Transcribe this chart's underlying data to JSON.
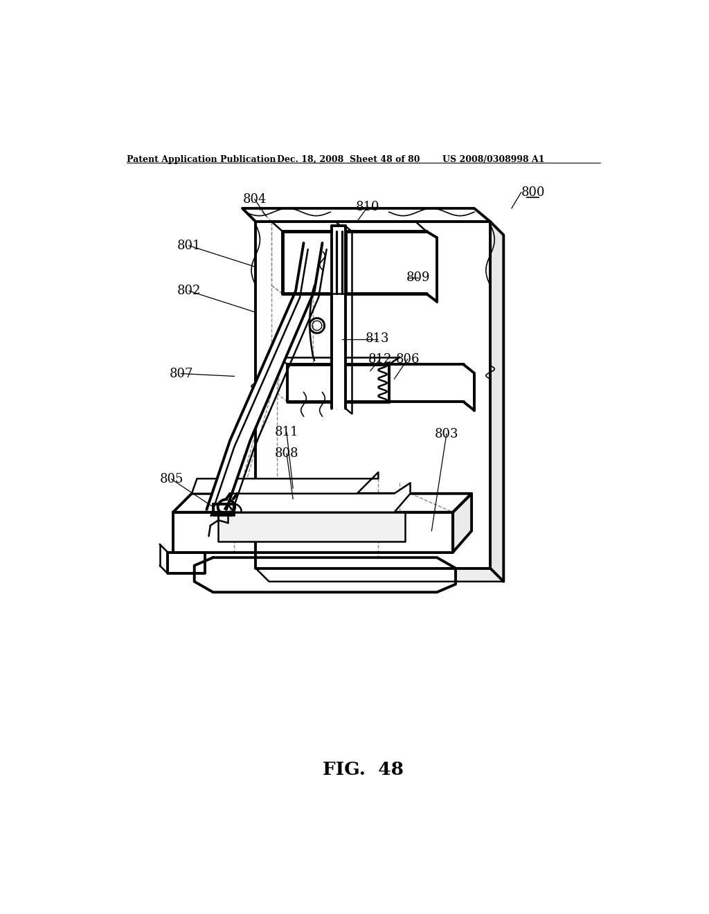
{
  "bg_color": "#ffffff",
  "header_left": "Patent Application Publication",
  "header_mid": "Dec. 18, 2008  Sheet 48 of 80",
  "header_right": "US 2008/0308998 A1",
  "figure_label": "FIG.  48"
}
